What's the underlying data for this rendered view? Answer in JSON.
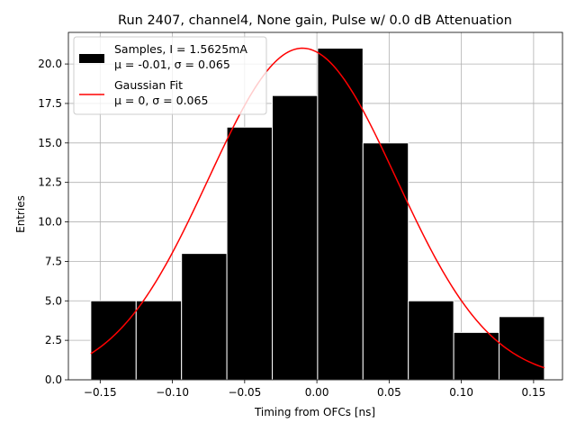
{
  "chart_data": {
    "type": "bar",
    "title": "Run 2407, channel4, None gain, Pulse w/ 0.0 dB Attenuation",
    "xlabel": "Timing from OFCs [ns]",
    "ylabel": "Entries",
    "xlim": [
      -0.172,
      0.17
    ],
    "ylim": [
      0,
      22
    ],
    "grid": true,
    "legend_position": "top-left",
    "xticks": [
      {
        "value": -0.15,
        "label": "−0.15"
      },
      {
        "value": -0.1,
        "label": "−0.10"
      },
      {
        "value": -0.05,
        "label": "−0.05"
      },
      {
        "value": 0.0,
        "label": "0.00"
      },
      {
        "value": 0.05,
        "label": "0.05"
      },
      {
        "value": 0.1,
        "label": "0.10"
      },
      {
        "value": 0.15,
        "label": "0.15"
      }
    ],
    "yticks": [
      {
        "value": 0,
        "label": "0.0"
      },
      {
        "value": 2.5,
        "label": "2.5"
      },
      {
        "value": 5,
        "label": "5.0"
      },
      {
        "value": 7.5,
        "label": "7.5"
      },
      {
        "value": 10,
        "label": "10.0"
      },
      {
        "value": 12.5,
        "label": "12.5"
      },
      {
        "value": 15,
        "label": "15.0"
      },
      {
        "value": 17.5,
        "label": "17.5"
      },
      {
        "value": 20,
        "label": "20.0"
      }
    ],
    "histogram": {
      "name": "Samples, I = 1.5625mA",
      "stats_label": "μ = -0.01, σ = 0.065",
      "color": "#000000",
      "edge_color": "#ffffff",
      "bin_edges": [
        -0.1565,
        -0.1251,
        -0.0937,
        -0.0623,
        -0.0309,
        0.0005,
        0.0319,
        0.0633,
        0.0947,
        0.1261,
        0.1575
      ],
      "counts": [
        5,
        5,
        8,
        16,
        18,
        21,
        15,
        5,
        3,
        4
      ]
    },
    "fit": {
      "name": "Gaussian Fit",
      "stats_label": "μ = 0, σ = 0.065",
      "color": "#ff0000",
      "amplitude": 21,
      "mean": -0.01,
      "sigma": 0.065,
      "x_range": [
        -0.1565,
        0.1575
      ]
    }
  }
}
